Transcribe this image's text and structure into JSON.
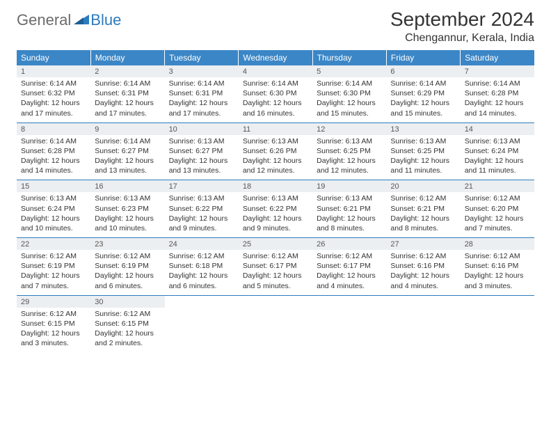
{
  "header": {
    "logo_general": "General",
    "logo_blue": "Blue",
    "month_title": "September 2024",
    "location": "Chengannur, Kerala, India"
  },
  "style": {
    "header_bg": "#3b86c6",
    "header_fg": "#ffffff",
    "daynum_bg": "#eceff1",
    "rule_color": "#2b7bbf",
    "text_color": "#333333",
    "logo_gray": "#6b6b6b",
    "logo_blue": "#2b7bbf",
    "month_fontsize": 28,
    "location_fontsize": 16,
    "dayheader_fontsize": 12,
    "daynum_fontsize": 11,
    "detail_fontsize": 10.5
  },
  "day_headers": [
    "Sunday",
    "Monday",
    "Tuesday",
    "Wednesday",
    "Thursday",
    "Friday",
    "Saturday"
  ],
  "weeks": [
    [
      {
        "n": "1",
        "sr": "Sunrise: 6:14 AM",
        "ss": "Sunset: 6:32 PM",
        "d1": "Daylight: 12 hours",
        "d2": "and 17 minutes."
      },
      {
        "n": "2",
        "sr": "Sunrise: 6:14 AM",
        "ss": "Sunset: 6:31 PM",
        "d1": "Daylight: 12 hours",
        "d2": "and 17 minutes."
      },
      {
        "n": "3",
        "sr": "Sunrise: 6:14 AM",
        "ss": "Sunset: 6:31 PM",
        "d1": "Daylight: 12 hours",
        "d2": "and 17 minutes."
      },
      {
        "n": "4",
        "sr": "Sunrise: 6:14 AM",
        "ss": "Sunset: 6:30 PM",
        "d1": "Daylight: 12 hours",
        "d2": "and 16 minutes."
      },
      {
        "n": "5",
        "sr": "Sunrise: 6:14 AM",
        "ss": "Sunset: 6:30 PM",
        "d1": "Daylight: 12 hours",
        "d2": "and 15 minutes."
      },
      {
        "n": "6",
        "sr": "Sunrise: 6:14 AM",
        "ss": "Sunset: 6:29 PM",
        "d1": "Daylight: 12 hours",
        "d2": "and 15 minutes."
      },
      {
        "n": "7",
        "sr": "Sunrise: 6:14 AM",
        "ss": "Sunset: 6:28 PM",
        "d1": "Daylight: 12 hours",
        "d2": "and 14 minutes."
      }
    ],
    [
      {
        "n": "8",
        "sr": "Sunrise: 6:14 AM",
        "ss": "Sunset: 6:28 PM",
        "d1": "Daylight: 12 hours",
        "d2": "and 14 minutes."
      },
      {
        "n": "9",
        "sr": "Sunrise: 6:14 AM",
        "ss": "Sunset: 6:27 PM",
        "d1": "Daylight: 12 hours",
        "d2": "and 13 minutes."
      },
      {
        "n": "10",
        "sr": "Sunrise: 6:13 AM",
        "ss": "Sunset: 6:27 PM",
        "d1": "Daylight: 12 hours",
        "d2": "and 13 minutes."
      },
      {
        "n": "11",
        "sr": "Sunrise: 6:13 AM",
        "ss": "Sunset: 6:26 PM",
        "d1": "Daylight: 12 hours",
        "d2": "and 12 minutes."
      },
      {
        "n": "12",
        "sr": "Sunrise: 6:13 AM",
        "ss": "Sunset: 6:25 PM",
        "d1": "Daylight: 12 hours",
        "d2": "and 12 minutes."
      },
      {
        "n": "13",
        "sr": "Sunrise: 6:13 AM",
        "ss": "Sunset: 6:25 PM",
        "d1": "Daylight: 12 hours",
        "d2": "and 11 minutes."
      },
      {
        "n": "14",
        "sr": "Sunrise: 6:13 AM",
        "ss": "Sunset: 6:24 PM",
        "d1": "Daylight: 12 hours",
        "d2": "and 11 minutes."
      }
    ],
    [
      {
        "n": "15",
        "sr": "Sunrise: 6:13 AM",
        "ss": "Sunset: 6:24 PM",
        "d1": "Daylight: 12 hours",
        "d2": "and 10 minutes."
      },
      {
        "n": "16",
        "sr": "Sunrise: 6:13 AM",
        "ss": "Sunset: 6:23 PM",
        "d1": "Daylight: 12 hours",
        "d2": "and 10 minutes."
      },
      {
        "n": "17",
        "sr": "Sunrise: 6:13 AM",
        "ss": "Sunset: 6:22 PM",
        "d1": "Daylight: 12 hours",
        "d2": "and 9 minutes."
      },
      {
        "n": "18",
        "sr": "Sunrise: 6:13 AM",
        "ss": "Sunset: 6:22 PM",
        "d1": "Daylight: 12 hours",
        "d2": "and 9 minutes."
      },
      {
        "n": "19",
        "sr": "Sunrise: 6:13 AM",
        "ss": "Sunset: 6:21 PM",
        "d1": "Daylight: 12 hours",
        "d2": "and 8 minutes."
      },
      {
        "n": "20",
        "sr": "Sunrise: 6:12 AM",
        "ss": "Sunset: 6:21 PM",
        "d1": "Daylight: 12 hours",
        "d2": "and 8 minutes."
      },
      {
        "n": "21",
        "sr": "Sunrise: 6:12 AM",
        "ss": "Sunset: 6:20 PM",
        "d1": "Daylight: 12 hours",
        "d2": "and 7 minutes."
      }
    ],
    [
      {
        "n": "22",
        "sr": "Sunrise: 6:12 AM",
        "ss": "Sunset: 6:19 PM",
        "d1": "Daylight: 12 hours",
        "d2": "and 7 minutes."
      },
      {
        "n": "23",
        "sr": "Sunrise: 6:12 AM",
        "ss": "Sunset: 6:19 PM",
        "d1": "Daylight: 12 hours",
        "d2": "and 6 minutes."
      },
      {
        "n": "24",
        "sr": "Sunrise: 6:12 AM",
        "ss": "Sunset: 6:18 PM",
        "d1": "Daylight: 12 hours",
        "d2": "and 6 minutes."
      },
      {
        "n": "25",
        "sr": "Sunrise: 6:12 AM",
        "ss": "Sunset: 6:17 PM",
        "d1": "Daylight: 12 hours",
        "d2": "and 5 minutes."
      },
      {
        "n": "26",
        "sr": "Sunrise: 6:12 AM",
        "ss": "Sunset: 6:17 PM",
        "d1": "Daylight: 12 hours",
        "d2": "and 4 minutes."
      },
      {
        "n": "27",
        "sr": "Sunrise: 6:12 AM",
        "ss": "Sunset: 6:16 PM",
        "d1": "Daylight: 12 hours",
        "d2": "and 4 minutes."
      },
      {
        "n": "28",
        "sr": "Sunrise: 6:12 AM",
        "ss": "Sunset: 6:16 PM",
        "d1": "Daylight: 12 hours",
        "d2": "and 3 minutes."
      }
    ],
    [
      {
        "n": "29",
        "sr": "Sunrise: 6:12 AM",
        "ss": "Sunset: 6:15 PM",
        "d1": "Daylight: 12 hours",
        "d2": "and 3 minutes."
      },
      {
        "n": "30",
        "sr": "Sunrise: 6:12 AM",
        "ss": "Sunset: 6:15 PM",
        "d1": "Daylight: 12 hours",
        "d2": "and 2 minutes."
      },
      null,
      null,
      null,
      null,
      null
    ]
  ]
}
